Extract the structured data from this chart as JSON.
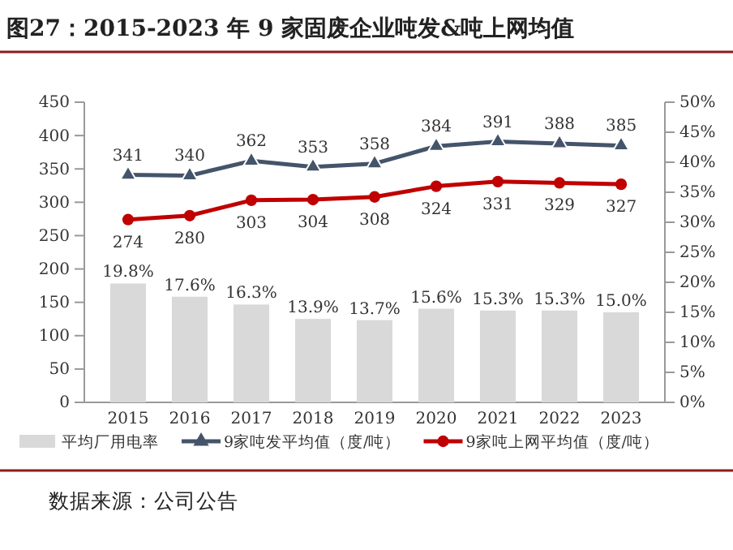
{
  "chart_data": {
    "type": "bar",
    "title": "图27：2015-2023 年 9 家固废企业吨发&吨上网均值",
    "categories": [
      "2015",
      "2016",
      "2017",
      "2018",
      "2019",
      "2020",
      "2021",
      "2022",
      "2023"
    ],
    "series": [
      {
        "name": "平均厂用电率",
        "axis": "y2",
        "color": "#d9d9d9",
        "values": [
          19.8,
          17.6,
          16.3,
          13.9,
          13.7,
          15.6,
          15.3,
          15.3,
          15.0
        ],
        "value_labels": [
          "19.8%",
          "17.6%",
          "16.3%",
          "13.9%",
          "13.7%",
          "15.6%",
          "15.3%",
          "15.3%",
          "15.0%"
        ]
      },
      {
        "name": "9家吨发平均值（度/吨）",
        "type": "line",
        "marker": "triangle",
        "color": "#44546a",
        "values": [
          341,
          340,
          362,
          353,
          358,
          384,
          391,
          388,
          385
        ],
        "value_labels": [
          "341",
          "340",
          "362",
          "353",
          "358",
          "384",
          "391",
          "388",
          "385"
        ]
      },
      {
        "name": "9家吨上网平均值（度/吨）",
        "type": "line",
        "marker": "circle",
        "color": "#c00000",
        "values": [
          274,
          280,
          303,
          304,
          308,
          324,
          331,
          329,
          327
        ],
        "value_labels": [
          "274",
          "280",
          "303",
          "304",
          "308",
          "324",
          "331",
          "329",
          "327"
        ]
      }
    ],
    "ylim": [
      0,
      450
    ],
    "yticks": [
      0,
      50,
      100,
      150,
      200,
      250,
      300,
      350,
      400,
      450
    ],
    "y2lim": [
      0,
      50
    ],
    "y2ticks": [
      {
        "value": 0,
        "label": "0%"
      },
      {
        "value": 5,
        "label": "5%"
      },
      {
        "value": 10,
        "label": "10%"
      },
      {
        "value": 15,
        "label": "15%"
      },
      {
        "value": 20,
        "label": "20%"
      },
      {
        "value": 25,
        "label": "25%"
      },
      {
        "value": 30,
        "label": "30%"
      },
      {
        "value": 35,
        "label": "35%"
      },
      {
        "value": 40,
        "label": "40%"
      },
      {
        "value": 45,
        "label": "45%"
      },
      {
        "value": 50,
        "label": "50%"
      }
    ],
    "grid": false,
    "legend": "bottom",
    "annotations": [
      "数据来源：公司公告"
    ]
  }
}
